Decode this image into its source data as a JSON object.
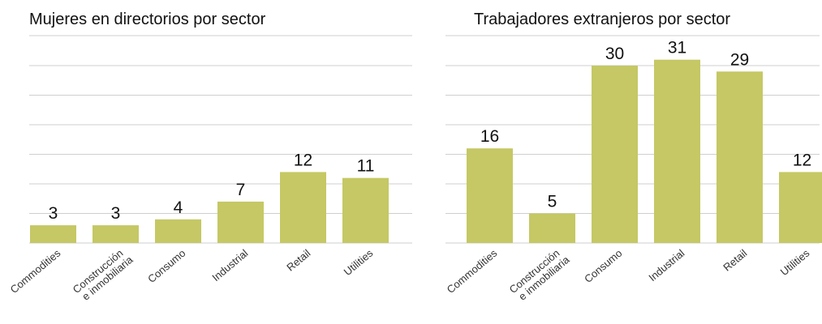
{
  "chart_data": [
    {
      "type": "bar",
      "title": "Mujeres en directorios por sector",
      "categories": [
        "Commodities",
        "Construcción e inmobiliaria",
        "Consumo",
        "Industrial",
        "Retail",
        "Utilities"
      ],
      "values": [
        3,
        3,
        4,
        7,
        12,
        11
      ],
      "ylim": [
        0,
        35
      ],
      "grid": true,
      "data_labels": true
    },
    {
      "type": "bar",
      "title": "Trabajadores extranjeros por sector",
      "categories": [
        "Commodities",
        "Construcción e inmobiliaria",
        "Consumo",
        "Industrial",
        "Retail",
        "Utilities"
      ],
      "values": [
        16,
        5,
        30,
        31,
        29,
        12
      ],
      "ylim": [
        0,
        35
      ],
      "grid": true,
      "data_labels": true
    }
  ],
  "colors": {
    "bar": "#c5c864",
    "grid": "#cfcfcf",
    "text": "#111111"
  }
}
